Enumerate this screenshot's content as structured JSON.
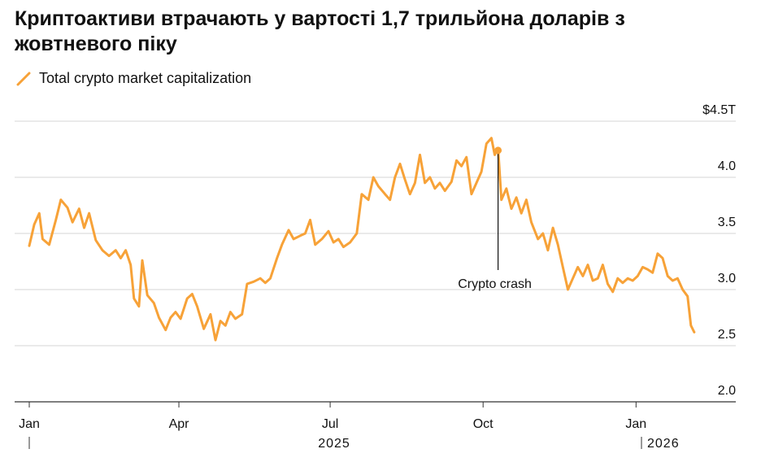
{
  "title": "Криптоактиви втрачають у вартості 1,7 трильйона доларів з жовтневого піку",
  "colors": {
    "series": "#F7A238",
    "grid": "#d6d6d6",
    "axis": "#333333"
  },
  "chart_data": {
    "type": "line",
    "series": [
      {
        "name": "Total crypto market capitalization",
        "points": [
          [
            "2025-01-01",
            3.39
          ],
          [
            "2025-01-04",
            3.58
          ],
          [
            "2025-01-07",
            3.68
          ],
          [
            "2025-01-09",
            3.45
          ],
          [
            "2025-01-13",
            3.4
          ],
          [
            "2025-01-17",
            3.62
          ],
          [
            "2025-01-20",
            3.8
          ],
          [
            "2025-01-24",
            3.73
          ],
          [
            "2025-01-27",
            3.6
          ],
          [
            "2025-01-31",
            3.72
          ],
          [
            "2025-02-03",
            3.55
          ],
          [
            "2025-02-06",
            3.68
          ],
          [
            "2025-02-10",
            3.44
          ],
          [
            "2025-02-14",
            3.35
          ],
          [
            "2025-02-18",
            3.3
          ],
          [
            "2025-02-22",
            3.35
          ],
          [
            "2025-02-25",
            3.28
          ],
          [
            "2025-02-28",
            3.35
          ],
          [
            "2025-03-03",
            3.22
          ],
          [
            "2025-03-05",
            2.92
          ],
          [
            "2025-03-08",
            2.85
          ],
          [
            "2025-03-10",
            3.26
          ],
          [
            "2025-03-13",
            2.95
          ],
          [
            "2025-03-17",
            2.88
          ],
          [
            "2025-03-20",
            2.75
          ],
          [
            "2025-03-24",
            2.64
          ],
          [
            "2025-03-27",
            2.75
          ],
          [
            "2025-03-30",
            2.8
          ],
          [
            "2025-04-02",
            2.74
          ],
          [
            "2025-04-06",
            2.92
          ],
          [
            "2025-04-09",
            2.96
          ],
          [
            "2025-04-12",
            2.85
          ],
          [
            "2025-04-16",
            2.65
          ],
          [
            "2025-04-20",
            2.78
          ],
          [
            "2025-04-23",
            2.55
          ],
          [
            "2025-04-26",
            2.72
          ],
          [
            "2025-04-29",
            2.68
          ],
          [
            "2025-05-02",
            2.8
          ],
          [
            "2025-05-05",
            2.74
          ],
          [
            "2025-05-09",
            2.78
          ],
          [
            "2025-05-12",
            3.05
          ],
          [
            "2025-05-16",
            3.07
          ],
          [
            "2025-05-20",
            3.1
          ],
          [
            "2025-05-23",
            3.06
          ],
          [
            "2025-05-26",
            3.1
          ],
          [
            "2025-05-30",
            3.28
          ],
          [
            "2025-06-02",
            3.4
          ],
          [
            "2025-06-06",
            3.53
          ],
          [
            "2025-06-09",
            3.45
          ],
          [
            "2025-06-13",
            3.48
          ],
          [
            "2025-06-16",
            3.5
          ],
          [
            "2025-06-19",
            3.62
          ],
          [
            "2025-06-22",
            3.4
          ],
          [
            "2025-06-26",
            3.45
          ],
          [
            "2025-06-30",
            3.52
          ],
          [
            "2025-07-03",
            3.42
          ],
          [
            "2025-07-06",
            3.45
          ],
          [
            "2025-07-09",
            3.38
          ],
          [
            "2025-07-13",
            3.42
          ],
          [
            "2025-07-17",
            3.5
          ],
          [
            "2025-07-20",
            3.85
          ],
          [
            "2025-07-24",
            3.8
          ],
          [
            "2025-07-27",
            4.0
          ],
          [
            "2025-07-30",
            3.92
          ],
          [
            "2025-08-03",
            3.85
          ],
          [
            "2025-08-06",
            3.8
          ],
          [
            "2025-08-09",
            4.0
          ],
          [
            "2025-08-12",
            4.12
          ],
          [
            "2025-08-15",
            3.98
          ],
          [
            "2025-08-18",
            3.85
          ],
          [
            "2025-08-21",
            3.95
          ],
          [
            "2025-08-24",
            4.2
          ],
          [
            "2025-08-27",
            3.95
          ],
          [
            "2025-08-30",
            4.0
          ],
          [
            "2025-09-02",
            3.9
          ],
          [
            "2025-09-05",
            3.95
          ],
          [
            "2025-09-08",
            3.88
          ],
          [
            "2025-09-12",
            3.96
          ],
          [
            "2025-09-15",
            4.15
          ],
          [
            "2025-09-18",
            4.1
          ],
          [
            "2025-09-21",
            4.18
          ],
          [
            "2025-09-24",
            3.85
          ],
          [
            "2025-09-27",
            3.95
          ],
          [
            "2025-09-30",
            4.05
          ],
          [
            "2025-10-03",
            4.3
          ],
          [
            "2025-10-06",
            4.35
          ],
          [
            "2025-10-08",
            4.2
          ],
          [
            "2025-10-10",
            4.26
          ],
          [
            "2025-10-12",
            3.8
          ],
          [
            "2025-10-15",
            3.9
          ],
          [
            "2025-10-18",
            3.72
          ],
          [
            "2025-10-21",
            3.82
          ],
          [
            "2025-10-24",
            3.68
          ],
          [
            "2025-10-27",
            3.8
          ],
          [
            "2025-10-30",
            3.6
          ],
          [
            "2025-11-03",
            3.45
          ],
          [
            "2025-11-06",
            3.5
          ],
          [
            "2025-11-09",
            3.35
          ],
          [
            "2025-11-12",
            3.55
          ],
          [
            "2025-11-15",
            3.4
          ],
          [
            "2025-11-18",
            3.2
          ],
          [
            "2025-11-21",
            3.0
          ],
          [
            "2025-11-24",
            3.1
          ],
          [
            "2025-11-27",
            3.2
          ],
          [
            "2025-11-30",
            3.12
          ],
          [
            "2025-12-03",
            3.22
          ],
          [
            "2025-12-06",
            3.08
          ],
          [
            "2025-12-09",
            3.1
          ],
          [
            "2025-12-12",
            3.22
          ],
          [
            "2025-12-15",
            3.05
          ],
          [
            "2025-12-18",
            2.98
          ],
          [
            "2025-12-21",
            3.1
          ],
          [
            "2025-12-24",
            3.06
          ],
          [
            "2025-12-27",
            3.1
          ],
          [
            "2025-12-30",
            3.08
          ],
          [
            "2026-01-02",
            3.12
          ],
          [
            "2026-01-05",
            3.2
          ],
          [
            "2026-01-08",
            3.18
          ],
          [
            "2026-01-11",
            3.15
          ],
          [
            "2026-01-14",
            3.32
          ],
          [
            "2026-01-17",
            3.28
          ],
          [
            "2026-01-20",
            3.12
          ],
          [
            "2026-01-23",
            3.08
          ],
          [
            "2026-01-26",
            3.1
          ],
          [
            "2026-01-29",
            3.0
          ],
          [
            "2026-02-01",
            2.94
          ],
          [
            "2026-02-03",
            2.68
          ],
          [
            "2026-02-05",
            2.62
          ]
        ]
      }
    ],
    "annotation": {
      "label": "Crypto crash",
      "date": "2025-10-10",
      "value": 4.24
    },
    "x_ticks": [
      {
        "label": "Jan",
        "date": "2025-01-01"
      },
      {
        "label": "Apr",
        "date": "2025-04-01"
      },
      {
        "label": "Jul",
        "date": "2025-07-01"
      },
      {
        "label": "Oct",
        "date": "2025-10-01"
      },
      {
        "label": "Jan",
        "date": "2026-01-01"
      }
    ],
    "year_labels": [
      {
        "label": "2025",
        "date": "2025-07-01"
      },
      {
        "label": "2026",
        "date": "2026-01-15"
      }
    ],
    "y_ticks": [
      {
        "value": 2.0,
        "label": "2.0"
      },
      {
        "value": 2.5,
        "label": "2.5"
      },
      {
        "value": 3.0,
        "label": "3.0"
      },
      {
        "value": 3.5,
        "label": "3.5"
      },
      {
        "value": 4.0,
        "label": "4.0"
      },
      {
        "value": 4.5,
        "label": "$4.5T"
      }
    ],
    "xlim": [
      "2025-01-01",
      "2026-02-08"
    ],
    "ylim": [
      2.0,
      4.5
    ],
    "grid": true,
    "legend_position": "top-left"
  }
}
